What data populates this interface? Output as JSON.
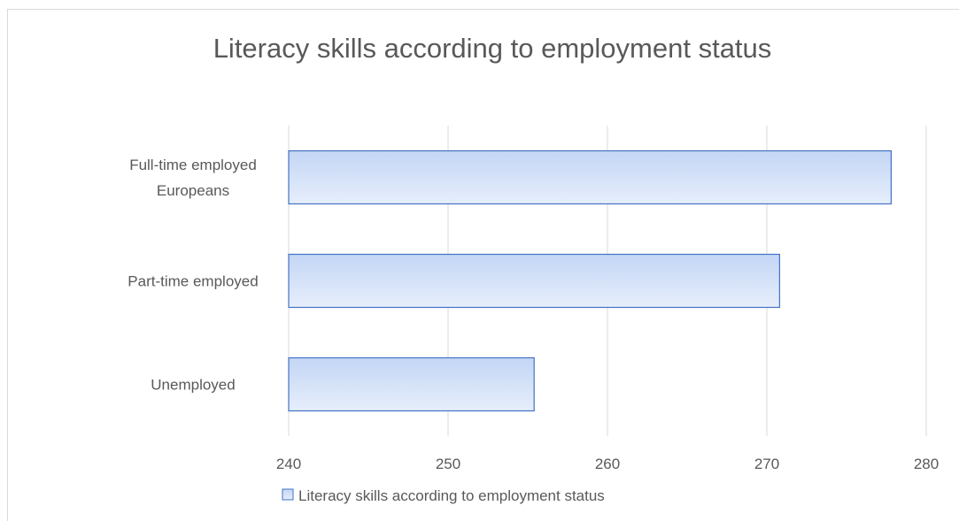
{
  "chart_data": {
    "type": "bar",
    "orientation": "horizontal",
    "title": "Literacy skills according to employment status",
    "categories": [
      "Full-time employed Europeans",
      "Part-time employed",
      "Unemployed"
    ],
    "category_lines": [
      [
        "Full-time employed",
        "Europeans"
      ],
      [
        "Part-time employed"
      ],
      [
        "Unemployed"
      ]
    ],
    "series": [
      {
        "name": "Literacy skills according to employment status",
        "values": [
          277.8,
          270.8,
          255.4
        ]
      }
    ],
    "xlim": [
      240,
      280
    ],
    "xticks": [
      "240",
      "250",
      "260",
      "270",
      "280"
    ],
    "xlabel": "",
    "ylabel": "",
    "grid": true,
    "legend": "bottom",
    "colors": {
      "bar_fill_top": "#c3d6f5",
      "bar_fill_bottom": "#e6eefb",
      "bar_stroke": "#4472c4",
      "grid": "#d9d9d9",
      "text": "#595959"
    }
  }
}
